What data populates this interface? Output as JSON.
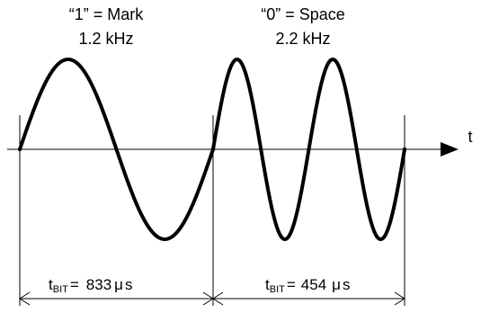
{
  "mark": {
    "name": "“1” = Mark",
    "freq": "1.2 kHz",
    "tbit": {
      "t": "t",
      "sub": "BIT",
      "eq": "=",
      "value": "833",
      "mu": "μ",
      "s": "s"
    }
  },
  "space": {
    "name": "“0” = Space",
    "freq": "2.2 kHz",
    "tbit": {
      "t": "t",
      "sub": "BIT",
      "eq": "=",
      "value": "454",
      "mu": "μ",
      "s": "s"
    }
  },
  "axis": {
    "time_label": "t"
  }
}
